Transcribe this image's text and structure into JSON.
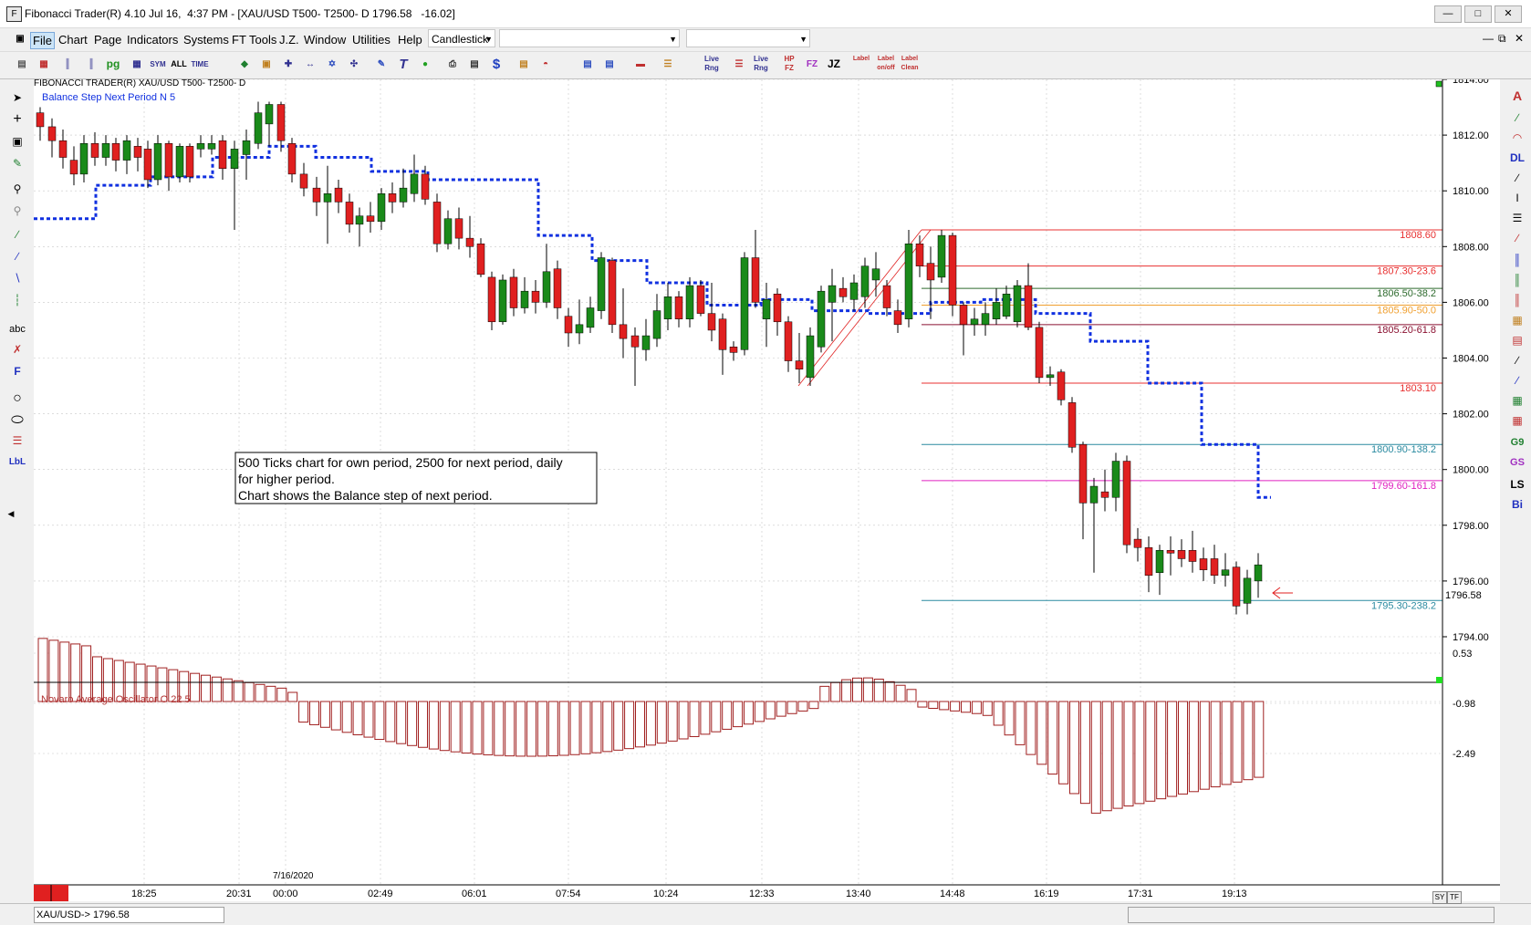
{
  "window": {
    "title": "Fibonacci Trader(R) 4.10 Jul 16,  4:37 PM - [XAU/USD T500- T2500- D 1796.58   -16.02]"
  },
  "menu": {
    "items": [
      "File",
      "Chart",
      "Page",
      "Indicators",
      "Systems",
      "FT Tools",
      "J.Z.",
      "Window",
      "Utilities",
      "Help"
    ],
    "chart_type": "Candlestick"
  },
  "toolbar": {
    "icons": [
      "toggle-icon",
      "bar-chart-icon",
      "bar-chart-2-icon",
      "bar-chart-3-icon",
      "pg-icon",
      "grid-icon",
      "sym-icon",
      "all-icon",
      "time-icon",
      "layers-icon",
      "zoom-icon",
      "move-icon",
      "expand-icon",
      "center-icon",
      "crosshair-icon",
      "pen-icon",
      "text-icon",
      "traffic-light-icon",
      "print-icon",
      "copy-icon",
      "dollar-icon",
      "page-icon",
      "indicator-icon",
      "stack-icon",
      "stack-2-icon",
      "bars-red-icon",
      "fib-icon",
      "line-rng-icon",
      "fib-2-icon",
      "line-rng-2-icon",
      "hp-fz-icon",
      "fz-icon",
      "jz-icon",
      "label-icon",
      "label-onoff-icon",
      "label-clean-icon"
    ],
    "labels": {
      "sym": "SYM",
      "all": "ALL",
      "time": "TIME",
      "pg": "pg",
      "liverng": "Live Rng",
      "hp": "HP",
      "fz": "FZ",
      "jz": "JZ",
      "label": "Label",
      "onoff": "on/off",
      "clean": "Clean"
    }
  },
  "chart": {
    "header": "FIBONACCI TRADER(R)     XAU/USD T500- T2500- D",
    "indicator_label": "Balance Step Next Period N 5",
    "annotation_lines": [
      "500 Ticks chart for own period, 2500 for next period, daily",
      "for higher period.",
      "Chart shows the Balance step of next period."
    ],
    "date_label": "7/16/2020",
    "oscillator_label": "Novaro Average Oscillator O 22 5",
    "price_ticks": [
      "1814.00",
      "1812.00",
      "1810.00",
      "1808.00",
      "1806.00",
      "1804.00",
      "1802.00",
      "1800.00",
      "1798.00",
      "1796.00",
      "1794.00"
    ],
    "last_price": "1796.58",
    "osc_ticks": [
      "0.53",
      "-0.98",
      "-2.49"
    ],
    "time_ticks": [
      "18:25",
      "20:31",
      "00:00",
      "02:49",
      "06:01",
      "07:54",
      "10:24",
      "12:33",
      "13:40",
      "14:48",
      "16:19",
      "17:31",
      "19:13"
    ],
    "fib_levels": [
      {
        "label": "1808.60",
        "price": 1808.6,
        "color": "#e83030"
      },
      {
        "label": "1807.30-23.6",
        "price": 1807.3,
        "color": "#e83030"
      },
      {
        "label": "1806.50-38.2",
        "price": 1806.5,
        "color": "#2e6b2e"
      },
      {
        "label": "1805.90-50.0",
        "price": 1805.9,
        "color": "#f0a030"
      },
      {
        "label": "1805.20-61.8",
        "price": 1805.2,
        "color": "#8a1030"
      },
      {
        "label": "1803.10",
        "price": 1803.1,
        "color": "#e83030"
      },
      {
        "label": "1800.90-138.2",
        "price": 1800.9,
        "color": "#2a8aa0"
      },
      {
        "label": "1799.60-161.8",
        "price": 1799.6,
        "color": "#e020c0"
      },
      {
        "label": "1795.30-238.2",
        "price": 1795.3,
        "color": "#2a8aa0"
      }
    ]
  },
  "status": {
    "symbol": "XAU/USD-> 1796.58",
    "sy": "SY",
    "tf": "TF"
  },
  "left_tools": [
    "cursor-icon",
    "crosshair-icon",
    "magnet-icon",
    "pencil-icon",
    "zoom-in-icon",
    "zoom-out-icon",
    "trendline-icon",
    "ray-icon",
    "channel-icon",
    "fan-icon",
    "abc-icon",
    "erase-icon",
    "f-icon",
    "circle-icon",
    "ellipse-icon",
    "fib-lines-icon",
    "lbl-icon"
  ],
  "left_labels": {
    "abc": "abc",
    "f": "F",
    "lbl": "LbL"
  },
  "right_tools": [
    "a-icon",
    "lines-icon",
    "arc-icon",
    "dl-icon",
    "parallel-icon",
    "i-icon",
    "horizontal-icon",
    "fan-red-icon",
    "bars-blue-icon",
    "bars-green-icon",
    "bars-red-icon",
    "gann-icon",
    "box-icon",
    "diag-icon",
    "diag2-icon",
    "grid-green-icon",
    "grid-red-icon",
    "g9-icon",
    "gs-icon",
    "ls-icon",
    "bi-icon"
  ],
  "right_labels": {
    "a": "A",
    "dl": "DL",
    "g9": "G9",
    "gs": "GS",
    "ls": "LS",
    "bi": "Bi"
  }
}
